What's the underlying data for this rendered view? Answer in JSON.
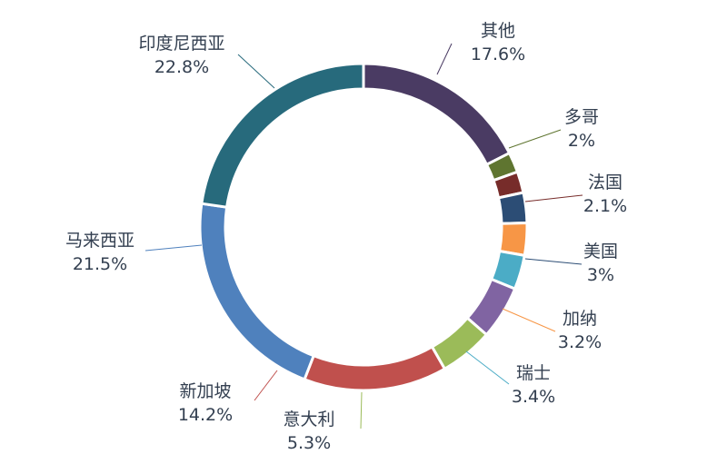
{
  "chart_data": {
    "type": "pie",
    "variant": "donut",
    "slices": [
      {
        "label": "其他",
        "value": 17.6,
        "display": "17.6%",
        "color": "#4a3b63"
      },
      {
        "label": "多哥",
        "value": 2,
        "display": "2%",
        "color": "#5f7530"
      },
      {
        "label": "法国",
        "value": 2.1,
        "display": "2.1%",
        "color": "#772c2a"
      },
      {
        "label": "美国",
        "value": 3,
        "display": "3%",
        "color": "#2c4d75"
      },
      {
        "label": "加纳",
        "value": 3.2,
        "display": "3.2%",
        "color": "#f79646"
      },
      {
        "label": "瑞士",
        "value": 3.4,
        "display": "3.4%",
        "color": "#4bacc6"
      },
      {
        "label": "意大利",
        "value": 5.3,
        "display": "5.3%",
        "color": "#8064a2"
      },
      {
        "label": "意大利",
        "value": 5.3,
        "display": "5.3%",
        "color": "#9bbb59"
      },
      {
        "label": "新加坡",
        "value": 14.2,
        "display": "14.2%",
        "color": "#c0504d"
      },
      {
        "label": "马来西亚",
        "value": 21.5,
        "display": "21.5%",
        "color": "#4f81bd"
      },
      {
        "label": "印度尼西亚",
        "value": 22.8,
        "display": "22.8%",
        "color": "#276a7c"
      }
    ],
    "legend": "none"
  }
}
